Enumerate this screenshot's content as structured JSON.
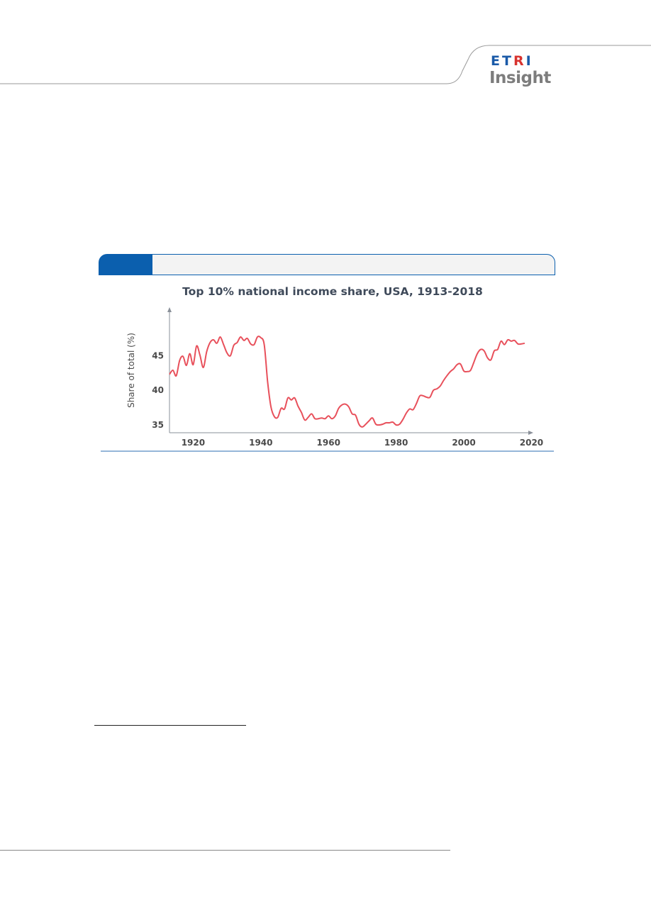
{
  "logo": {
    "part1": "ET",
    "part2": "R",
    "part3": "I",
    "line2": "Insight",
    "colors": {
      "blue": "#1a5aa8",
      "red": "#d8332f",
      "gray": "#7d7d7d"
    }
  },
  "colors": {
    "accent": "#0b5fae",
    "series": "#e8505b"
  },
  "chart_data": {
    "type": "line",
    "title": "Top 10% national income share, USA, 1913-2018",
    "xlabel": "",
    "ylabel": "Share of total (%)",
    "xlim": [
      1913,
      2022
    ],
    "ylim": [
      35,
      48
    ],
    "xticks": [
      1920,
      1940,
      1960,
      1980,
      2000,
      2020
    ],
    "yticks": [
      35,
      40,
      45
    ],
    "grid": false,
    "legend": "none",
    "series": [
      {
        "x": [
          1913,
          1914,
          1915,
          1916,
          1917,
          1918,
          1919,
          1920,
          1921,
          1922,
          1923,
          1924,
          1925,
          1926,
          1927,
          1928,
          1929,
          1930,
          1931,
          1932,
          1933,
          1934,
          1935,
          1936,
          1937,
          1938,
          1939,
          1940,
          1941,
          1942,
          1943,
          1944,
          1945,
          1946,
          1947,
          1948,
          1949,
          1950,
          1951,
          1952,
          1953,
          1954,
          1955,
          1956,
          1957,
          1958,
          1959,
          1960,
          1961,
          1962,
          1963,
          1964,
          1965,
          1966,
          1967,
          1968,
          1969,
          1970,
          1971,
          1972,
          1973,
          1974,
          1975,
          1976,
          1977,
          1978,
          1979,
          1980,
          1981,
          1982,
          1983,
          1984,
          1985,
          1986,
          1987,
          1988,
          1989,
          1990,
          1991,
          1992,
          1993,
          1994,
          1995,
          1996,
          1997,
          1998,
          1999,
          2000,
          2001,
          2002,
          2003,
          2004,
          2005,
          2006,
          2007,
          2008,
          2009,
          2010,
          2011,
          2012,
          2013,
          2014,
          2015,
          2016,
          2017,
          2018
        ],
        "values": [
          42.2,
          42.8,
          42.0,
          44.2,
          44.8,
          43.5,
          45.2,
          43.6,
          46.3,
          45.0,
          43.2,
          45.5,
          46.8,
          47.2,
          46.7,
          47.6,
          46.5,
          45.3,
          44.9,
          46.4,
          46.8,
          47.6,
          47.1,
          47.4,
          46.6,
          46.5,
          47.6,
          47.5,
          46.5,
          41.2,
          37.5,
          36.1,
          36.0,
          37.3,
          37.2,
          38.8,
          38.5,
          38.8,
          37.6,
          36.7,
          35.6,
          36.0,
          36.5,
          35.8,
          35.8,
          35.9,
          35.8,
          36.2,
          35.8,
          36.2,
          37.3,
          37.8,
          37.9,
          37.5,
          36.5,
          36.3,
          35.0,
          34.6,
          35.0,
          35.5,
          35.9,
          35.0,
          34.9,
          35.0,
          35.2,
          35.2,
          35.3,
          34.9,
          35.0,
          35.7,
          36.6,
          37.2,
          37.1,
          38.0,
          39.1,
          39.1,
          38.9,
          38.9,
          39.9,
          40.1,
          40.5,
          41.3,
          42.0,
          42.6,
          43.0,
          43.6,
          43.7,
          42.7,
          42.6,
          42.8,
          44.0,
          45.2,
          45.8,
          45.6,
          44.6,
          44.3,
          45.6,
          45.8,
          47.0,
          46.5,
          47.2,
          47.0,
          47.1,
          46.6,
          46.6,
          46.7
        ]
      }
    ]
  }
}
